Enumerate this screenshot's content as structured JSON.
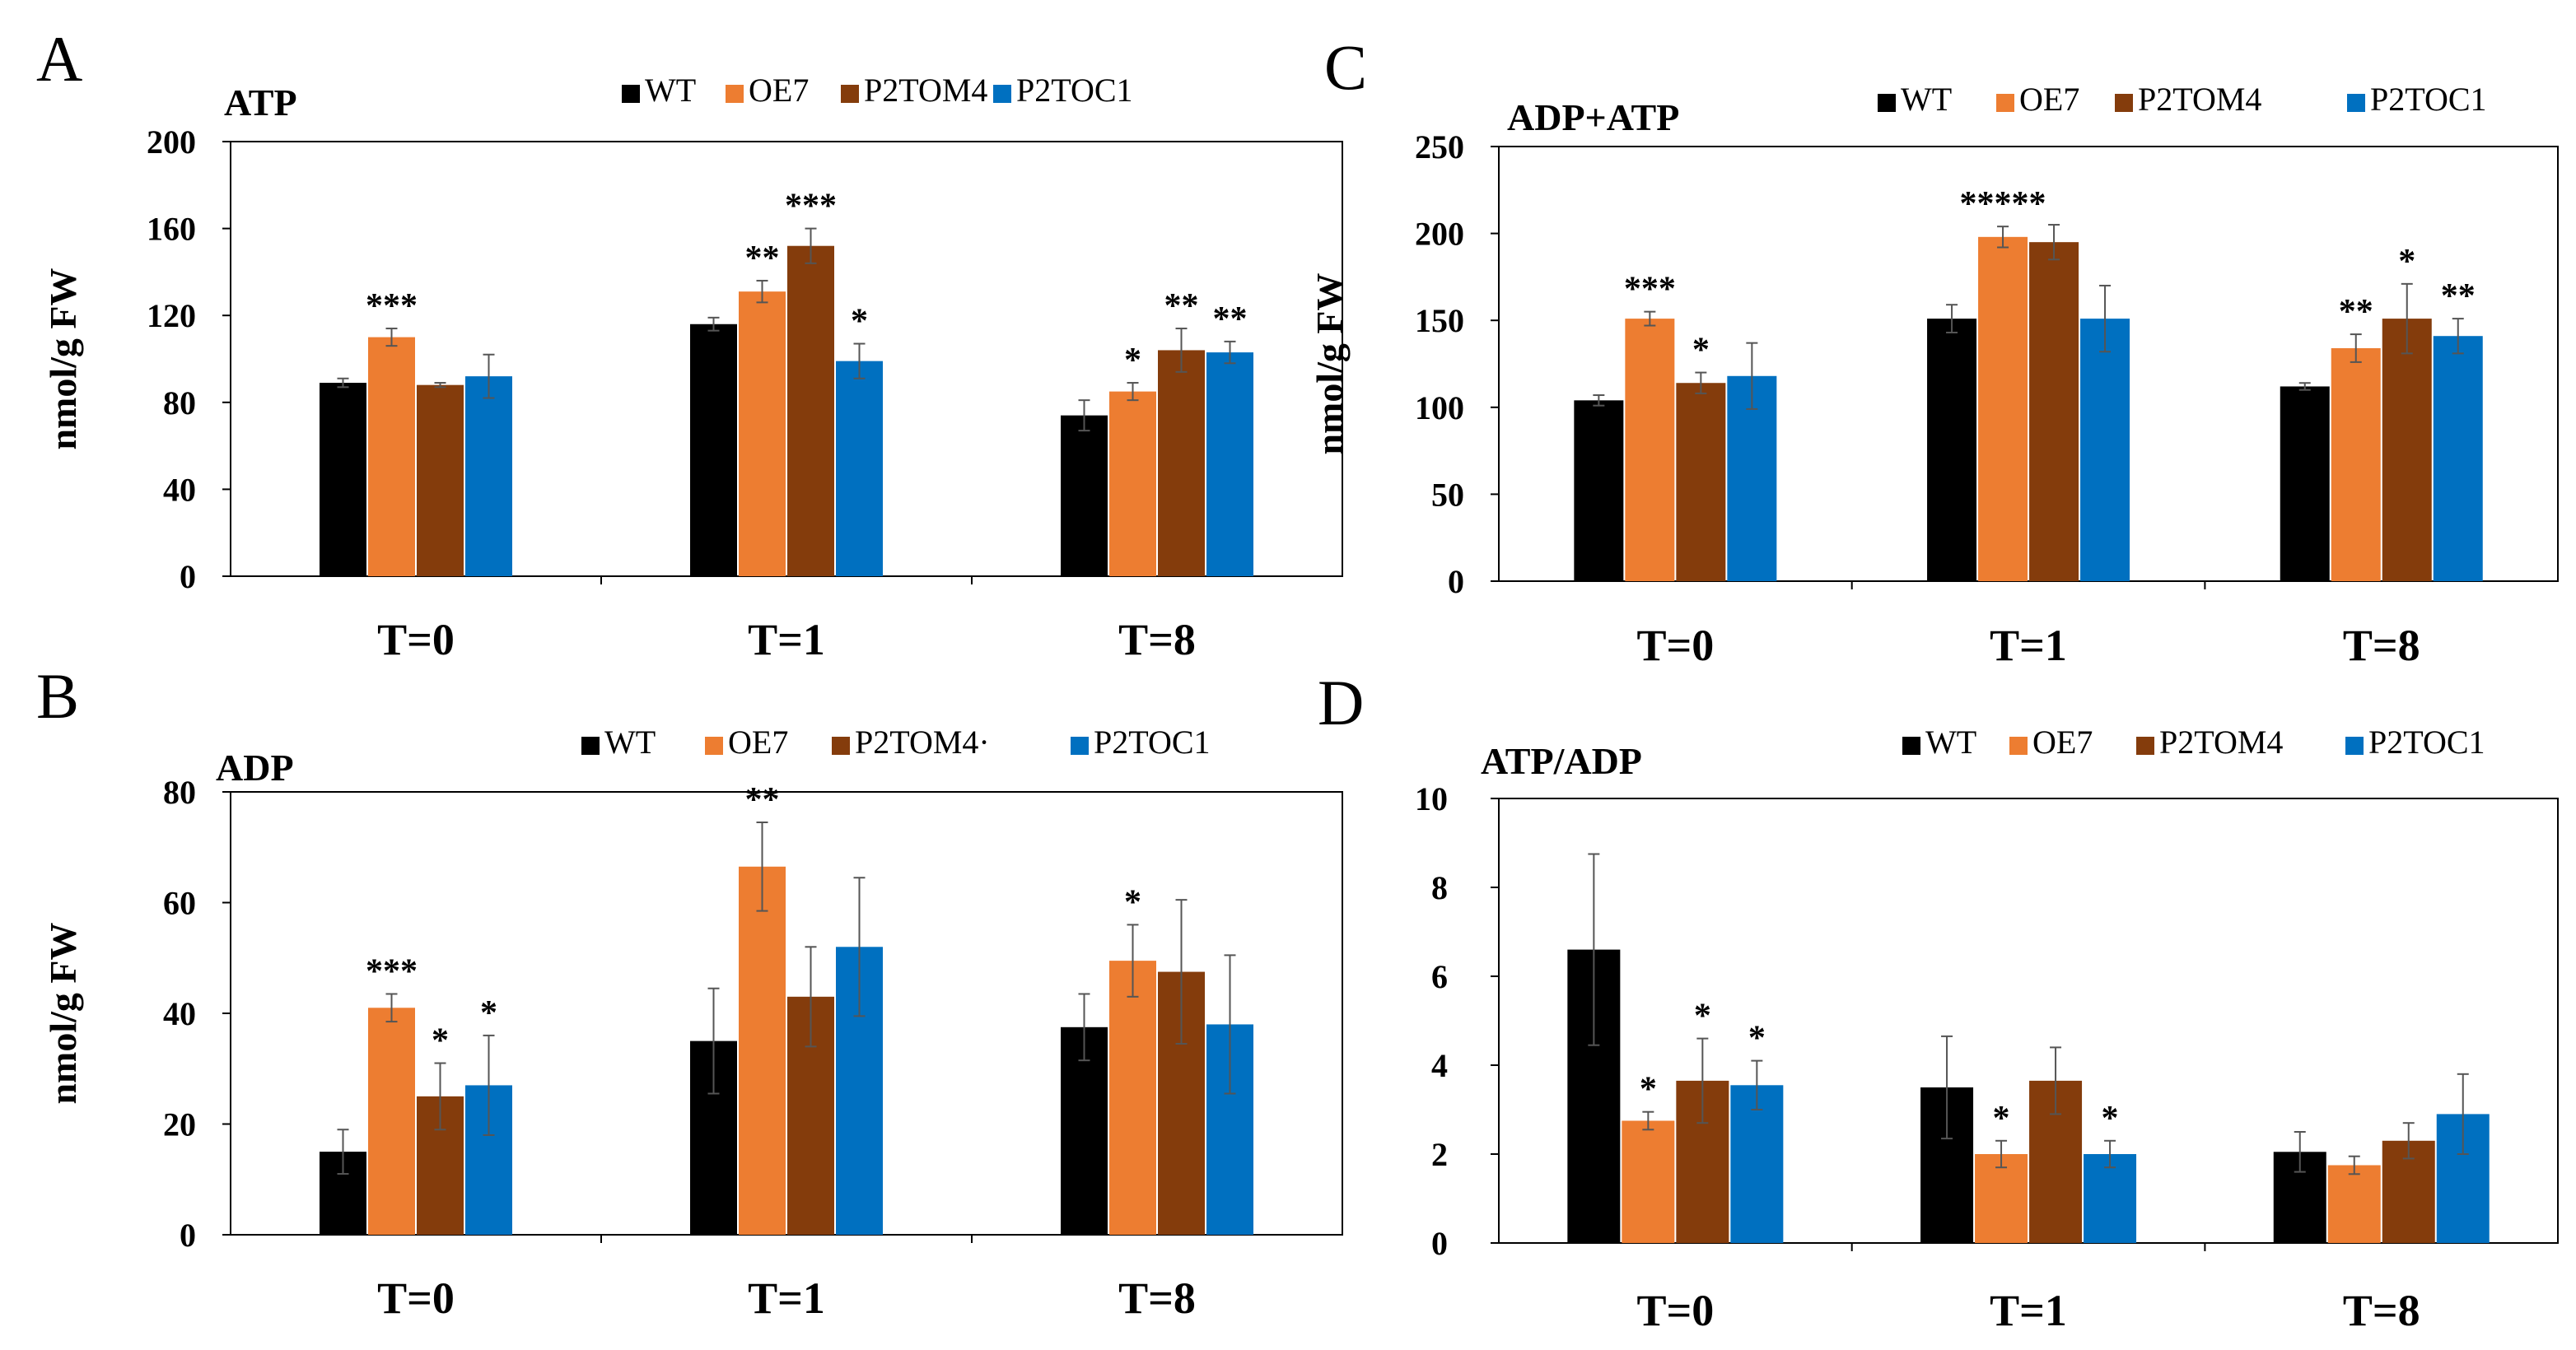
{
  "figure": {
    "series_colors": {
      "WT": "#000000",
      "OE7": "#ED7D31",
      "P2TOM4": "#843C0C",
      "P2TOC1": "#0070C0"
    },
    "grid": false
  },
  "chart_data": [
    {
      "panel": "A",
      "type": "bar",
      "title": "ATP",
      "ylabel": "nmol/g FW",
      "xlabel": "",
      "categories": [
        "T=0",
        "T=1",
        "T=8"
      ],
      "ylim": [
        0,
        200
      ],
      "yticks": [
        0,
        40,
        80,
        120,
        160,
        200
      ],
      "legend": "top",
      "series": [
        {
          "name": "WT",
          "values": [
            89,
            116,
            74
          ],
          "errors": [
            2,
            3,
            7
          ],
          "sig": [
            "",
            "",
            ""
          ]
        },
        {
          "name": "OE7",
          "values": [
            110,
            131,
            85
          ],
          "errors": [
            4,
            5,
            4
          ],
          "sig": [
            "***",
            "**",
            "*"
          ]
        },
        {
          "name": "P2TOM4",
          "values": [
            88,
            152,
            104
          ],
          "errors": [
            1,
            8,
            10
          ],
          "sig": [
            "",
            "***",
            "**"
          ]
        },
        {
          "name": "P2TOC1",
          "values": [
            92,
            99,
            103
          ],
          "errors": [
            10,
            8,
            5
          ],
          "sig": [
            "",
            "*",
            "**"
          ]
        }
      ]
    },
    {
      "panel": "C",
      "type": "bar",
      "title": "ADP+ATP",
      "ylabel": "nmol/g FW",
      "xlabel": "",
      "categories": [
        "T=0",
        "T=1",
        "T=8"
      ],
      "ylim": [
        0,
        250
      ],
      "yticks": [
        0,
        50,
        100,
        150,
        200,
        250
      ],
      "legend": "top",
      "series": [
        {
          "name": "WT",
          "values": [
            104,
            151,
            112
          ],
          "errors": [
            3,
            8,
            2
          ],
          "sig": [
            "",
            "",
            ""
          ]
        },
        {
          "name": "OE7",
          "values": [
            151,
            198,
            134
          ],
          "errors": [
            4,
            6,
            8
          ],
          "sig": [
            "***",
            "*****",
            "**"
          ]
        },
        {
          "name": "P2TOM4",
          "values": [
            114,
            195,
            151
          ],
          "errors": [
            6,
            10,
            20
          ],
          "sig": [
            "*",
            "",
            "*"
          ]
        },
        {
          "name": "P2TOC1",
          "values": [
            118,
            151,
            141
          ],
          "errors": [
            19,
            19,
            10
          ],
          "sig": [
            "",
            "",
            "**"
          ]
        }
      ]
    },
    {
      "panel": "B",
      "type": "bar",
      "title": "ADP",
      "ylabel": "nmol/g FW",
      "xlabel": "",
      "categories": [
        "T=0",
        "T=1",
        "T=8"
      ],
      "ylim": [
        0,
        80
      ],
      "yticks": [
        0,
        20,
        40,
        60,
        80
      ],
      "legend": "top",
      "series": [
        {
          "name": "WT",
          "values": [
            15,
            35,
            37.5
          ],
          "errors": [
            4,
            9.5,
            6
          ],
          "sig": [
            "",
            "",
            ""
          ]
        },
        {
          "name": "OE7",
          "values": [
            41,
            66.5,
            49.5
          ],
          "errors": [
            2.5,
            8,
            6.5
          ],
          "sig": [
            "***",
            "**",
            "*"
          ]
        },
        {
          "name": "P2TOM4",
          "values": [
            25,
            43,
            47.5
          ],
          "errors": [
            6,
            9,
            13
          ],
          "sig": [
            "*",
            "",
            ""
          ]
        },
        {
          "name": "P2TOC1",
          "values": [
            27,
            52,
            38
          ],
          "errors": [
            9,
            12.5,
            12.5
          ],
          "sig": [
            "*",
            "",
            ""
          ]
        }
      ],
      "legend_labels": [
        "WT",
        "OE7",
        "P2TOM4·",
        "P2TOC1"
      ]
    },
    {
      "panel": "D",
      "type": "bar",
      "title": "ATP/ADP",
      "ylabel": "",
      "xlabel": "",
      "categories": [
        "T=0",
        "T=1",
        "T=8"
      ],
      "ylim": [
        0,
        10
      ],
      "yticks": [
        0,
        2,
        4,
        6,
        8,
        10
      ],
      "legend": "top",
      "series": [
        {
          "name": "WT",
          "values": [
            6.6,
            3.5,
            2.05
          ],
          "errors": [
            2.15,
            1.15,
            0.45
          ],
          "sig": [
            "",
            "",
            ""
          ]
        },
        {
          "name": "OE7",
          "values": [
            2.75,
            2.0,
            1.75
          ],
          "errors": [
            0.2,
            0.3,
            0.2
          ],
          "sig": [
            "*",
            "*",
            ""
          ]
        },
        {
          "name": "P2TOM4",
          "values": [
            3.65,
            3.65,
            2.3
          ],
          "errors": [
            0.95,
            0.75,
            0.4
          ],
          "sig": [
            "*",
            "",
            ""
          ]
        },
        {
          "name": "P2TOC1",
          "values": [
            3.55,
            2.0,
            2.9
          ],
          "errors": [
            0.55,
            0.3,
            0.9
          ],
          "sig": [
            "*",
            "*",
            ""
          ]
        }
      ]
    }
  ],
  "panel_letters": [
    "A",
    "C",
    "B",
    "D"
  ]
}
